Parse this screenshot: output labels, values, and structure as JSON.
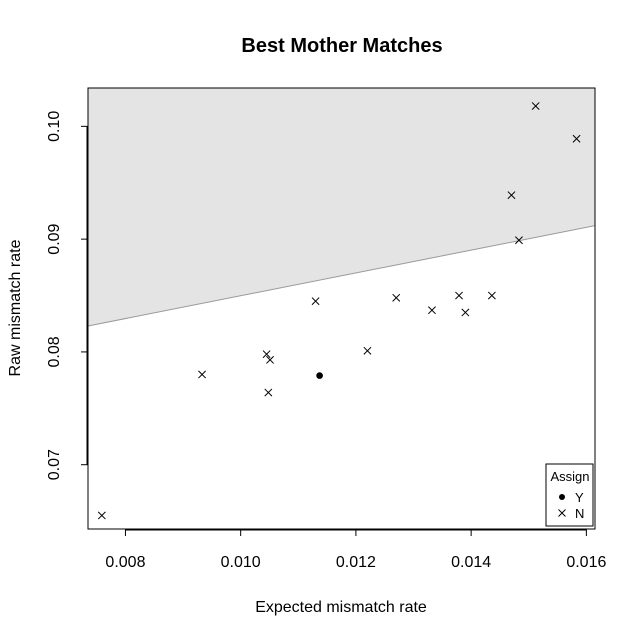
{
  "chart_data": {
    "type": "scatter",
    "title": "Best Mother Matches",
    "xlabel": "Expected mismatch rate",
    "ylabel": "Raw mismatch rate",
    "xlim": [
      0.00735,
      0.01615
    ],
    "ylim": [
      0.0643,
      0.1034
    ],
    "xticks": [
      "0.008",
      "0.010",
      "0.012",
      "0.014",
      "0.016"
    ],
    "xtick_values": [
      0.008,
      0.01,
      0.012,
      0.014,
      0.016
    ],
    "yticks": [
      "0.07",
      "0.08",
      "0.09",
      "0.10"
    ],
    "ytick_values": [
      0.07,
      0.08,
      0.09,
      0.1
    ],
    "grid": false,
    "shaded_region": {
      "description_line": [
        [
          0.00735,
          0.0823
        ],
        [
          0.01615,
          0.0912
        ]
      ],
      "fill": "#e4e4e4",
      "line_color": "#999999"
    },
    "legend": {
      "title": "Assign",
      "position": "bottom-right",
      "entries": [
        {
          "label": "Y",
          "marker": "filled-circle"
        },
        {
          "label": "N",
          "marker": "x"
        }
      ]
    },
    "series": [
      {
        "name": "Y",
        "marker": "filled-circle",
        "points": [
          [
            0.01137,
            0.0779
          ]
        ]
      },
      {
        "name": "N",
        "marker": "x",
        "points": [
          [
            0.00759,
            0.0655
          ],
          [
            0.00933,
            0.078
          ],
          [
            0.01045,
            0.0798
          ],
          [
            0.01051,
            0.0793
          ],
          [
            0.01048,
            0.0764
          ],
          [
            0.0113,
            0.0845
          ],
          [
            0.0122,
            0.0801
          ],
          [
            0.0127,
            0.0848
          ],
          [
            0.01332,
            0.0837
          ],
          [
            0.01379,
            0.085
          ],
          [
            0.0139,
            0.0835
          ],
          [
            0.01436,
            0.085
          ],
          [
            0.0147,
            0.0939
          ],
          [
            0.01483,
            0.0899
          ],
          [
            0.01512,
            0.1018
          ],
          [
            0.01583,
            0.0989
          ]
        ]
      }
    ]
  }
}
